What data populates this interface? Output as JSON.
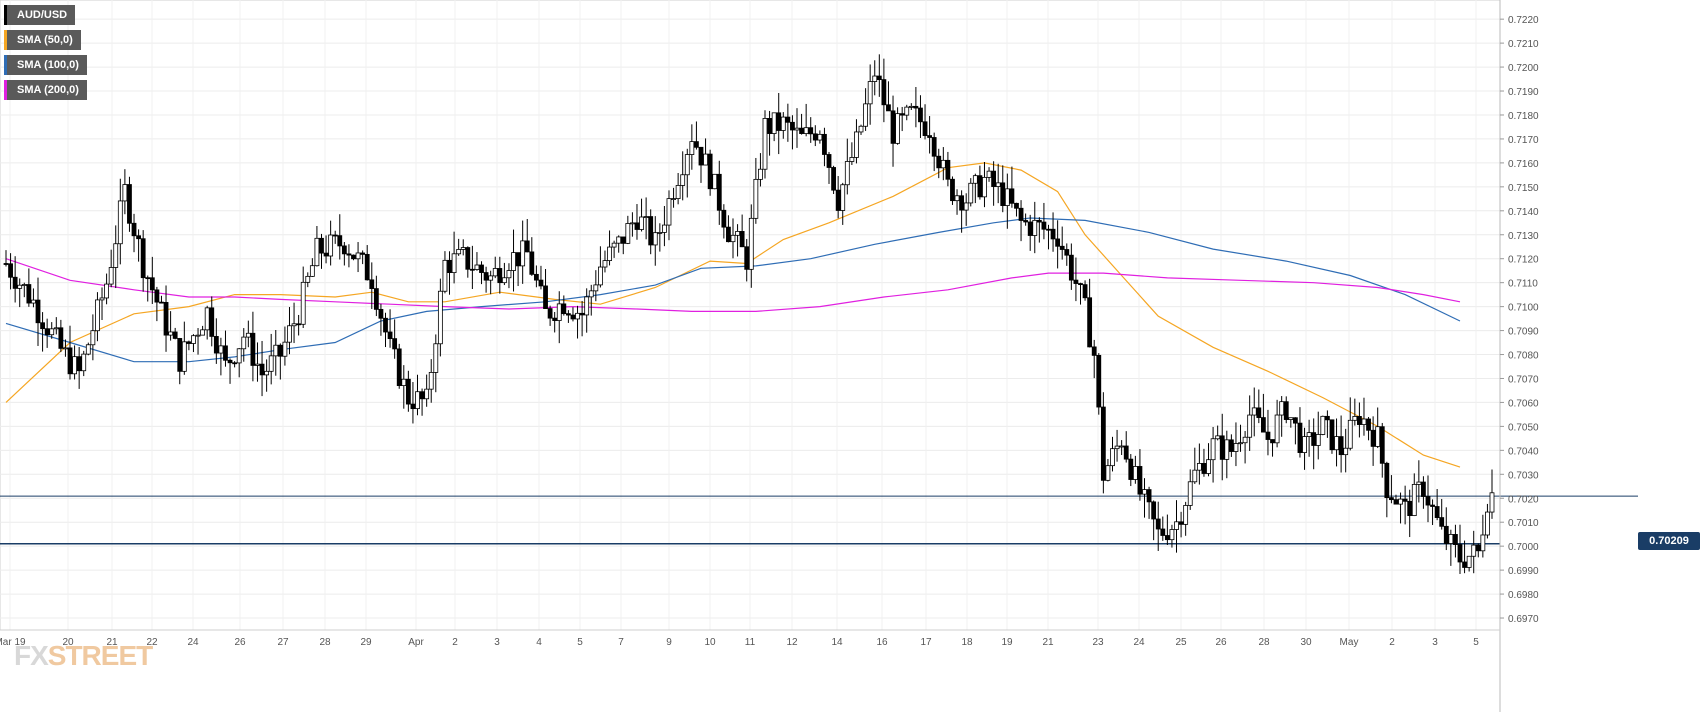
{
  "legend": [
    {
      "label": "AUD/USD",
      "color": "#000000"
    },
    {
      "label": "SMA (50,0)",
      "color": "#f5a623"
    },
    {
      "label": "SMA (100,0)",
      "color": "#2f6db5"
    },
    {
      "label": "SMA (200,0)",
      "color": "#e020e0"
    }
  ],
  "logo": {
    "fx": "FX",
    "street": "STREET"
  },
  "chart_data": {
    "type": "candlestick",
    "symbol": "AUD/USD",
    "ylim": [
      0.6965,
      0.7228
    ],
    "y_ticks": [
      "0.7220",
      "0.7210",
      "0.7200",
      "0.7190",
      "0.7180",
      "0.7170",
      "0.7160",
      "0.7150",
      "0.7140",
      "0.7130",
      "0.7120",
      "0.7110",
      "0.7100",
      "0.7090",
      "0.7080",
      "0.7070",
      "0.7060",
      "0.7050",
      "0.7040",
      "0.7030",
      "0.7020",
      "0.7010",
      "0.7000",
      "0.6990",
      "0.6980",
      "0.6970"
    ],
    "x_ticks": [
      "Mar 19",
      "20",
      "21",
      "22",
      "24",
      "26",
      "27",
      "28",
      "29",
      "Apr",
      "2",
      "3",
      "4",
      "5",
      "7",
      "9",
      "10",
      "11",
      "12",
      "14",
      "16",
      "17",
      "18",
      "19",
      "21",
      "23",
      "24",
      "25",
      "26",
      "28",
      "30",
      "May",
      "2",
      "3",
      "5"
    ],
    "grid": true,
    "current_price": {
      "label": "0.70209",
      "value": 0.70209
    },
    "horizontal_level": 0.7001,
    "ohlc_anchors": [
      [
        0,
        0.7118
      ],
      [
        6,
        0.7102
      ],
      [
        12,
        0.7082
      ],
      [
        16,
        0.7072
      ],
      [
        22,
        0.711
      ],
      [
        26,
        0.7148
      ],
      [
        30,
        0.7118
      ],
      [
        34,
        0.7097
      ],
      [
        38,
        0.7078
      ],
      [
        44,
        0.7098
      ],
      [
        48,
        0.7075
      ],
      [
        52,
        0.7088
      ],
      [
        56,
        0.7072
      ],
      [
        60,
        0.708
      ],
      [
        64,
        0.7098
      ],
      [
        68,
        0.7123
      ],
      [
        74,
        0.7127
      ],
      [
        80,
        0.7112
      ],
      [
        84,
        0.7082
      ],
      [
        88,
        0.7062
      ],
      [
        92,
        0.706
      ],
      [
        96,
        0.7118
      ],
      [
        100,
        0.712
      ],
      [
        106,
        0.7112
      ],
      [
        110,
        0.712
      ],
      [
        114,
        0.7122
      ],
      [
        118,
        0.7097
      ],
      [
        122,
        0.7102
      ],
      [
        126,
        0.7097
      ],
      [
        130,
        0.7117
      ],
      [
        134,
        0.7126
      ],
      [
        138,
        0.7138
      ],
      [
        142,
        0.7126
      ],
      [
        146,
        0.715
      ],
      [
        150,
        0.7172
      ],
      [
        154,
        0.7155
      ],
      [
        158,
        0.7132
      ],
      [
        162,
        0.712
      ],
      [
        166,
        0.7175
      ],
      [
        170,
        0.7176
      ],
      [
        174,
        0.717
      ],
      [
        178,
        0.7175
      ],
      [
        182,
        0.7145
      ],
      [
        186,
        0.7168
      ],
      [
        190,
        0.7198
      ],
      [
        194,
        0.7173
      ],
      [
        198,
        0.718
      ],
      [
        202,
        0.7175
      ],
      [
        206,
        0.715
      ],
      [
        210,
        0.7145
      ],
      [
        214,
        0.7153
      ],
      [
        218,
        0.7147
      ],
      [
        222,
        0.7135
      ],
      [
        226,
        0.7133
      ],
      [
        230,
        0.713
      ],
      [
        234,
        0.711
      ],
      [
        236,
        0.7098
      ],
      [
        238,
        0.708
      ],
      [
        240,
        0.703
      ],
      [
        244,
        0.7045
      ],
      [
        248,
        0.7022
      ],
      [
        252,
        0.7005
      ],
      [
        256,
        0.701
      ],
      [
        260,
        0.703
      ],
      [
        264,
        0.7042
      ],
      [
        268,
        0.704
      ],
      [
        272,
        0.7055
      ],
      [
        276,
        0.7045
      ],
      [
        280,
        0.7058
      ],
      [
        284,
        0.704
      ],
      [
        288,
        0.705
      ],
      [
        292,
        0.704
      ],
      [
        296,
        0.7055
      ],
      [
        300,
        0.7045
      ],
      [
        302,
        0.7025
      ],
      [
        306,
        0.7015
      ],
      [
        310,
        0.7025
      ],
      [
        314,
        0.7005
      ],
      [
        318,
        0.6995
      ],
      [
        322,
        0.6997
      ],
      [
        324,
        0.702
      ],
      [
        325,
        0.7022
      ]
    ],
    "series": [
      {
        "name": "SMA (50,0)",
        "color": "#f5a623",
        "points": [
          [
            0,
            0.706
          ],
          [
            14,
            0.7085
          ],
          [
            28,
            0.7097
          ],
          [
            40,
            0.71
          ],
          [
            50,
            0.7105
          ],
          [
            60,
            0.7105
          ],
          [
            72,
            0.7104
          ],
          [
            80,
            0.7106
          ],
          [
            88,
            0.7102
          ],
          [
            96,
            0.7102
          ],
          [
            108,
            0.7106
          ],
          [
            120,
            0.7103
          ],
          [
            130,
            0.7101
          ],
          [
            142,
            0.7108
          ],
          [
            154,
            0.7119
          ],
          [
            162,
            0.7118
          ],
          [
            170,
            0.7128
          ],
          [
            180,
            0.7135
          ],
          [
            194,
            0.7146
          ],
          [
            206,
            0.7158
          ],
          [
            214,
            0.716
          ],
          [
            222,
            0.7157
          ],
          [
            230,
            0.7148
          ],
          [
            236,
            0.713
          ],
          [
            244,
            0.7113
          ],
          [
            252,
            0.7096
          ],
          [
            264,
            0.7083
          ],
          [
            276,
            0.7073
          ],
          [
            288,
            0.7062
          ],
          [
            300,
            0.705
          ],
          [
            310,
            0.7038
          ],
          [
            318,
            0.7033
          ]
        ]
      },
      {
        "name": "SMA (100,0)",
        "color": "#2f6db5",
        "points": [
          [
            0,
            0.7093
          ],
          [
            14,
            0.7085
          ],
          [
            28,
            0.7077
          ],
          [
            40,
            0.7077
          ],
          [
            50,
            0.7079
          ],
          [
            60,
            0.7082
          ],
          [
            72,
            0.7085
          ],
          [
            82,
            0.7094
          ],
          [
            92,
            0.7098
          ],
          [
            104,
            0.71
          ],
          [
            118,
            0.7102
          ],
          [
            130,
            0.7105
          ],
          [
            142,
            0.7109
          ],
          [
            152,
            0.7116
          ],
          [
            164,
            0.7117
          ],
          [
            176,
            0.712
          ],
          [
            190,
            0.7126
          ],
          [
            204,
            0.7131
          ],
          [
            216,
            0.7135
          ],
          [
            224,
            0.7137
          ],
          [
            236,
            0.7136
          ],
          [
            250,
            0.7131
          ],
          [
            264,
            0.7124
          ],
          [
            280,
            0.7119
          ],
          [
            294,
            0.7113
          ],
          [
            306,
            0.7105
          ],
          [
            318,
            0.7094
          ]
        ]
      },
      {
        "name": "SMA (200,0)",
        "color": "#e020e0",
        "points": [
          [
            0,
            0.712
          ],
          [
            14,
            0.7111
          ],
          [
            28,
            0.7107
          ],
          [
            40,
            0.7104
          ],
          [
            50,
            0.7104
          ],
          [
            60,
            0.7103
          ],
          [
            72,
            0.7102
          ],
          [
            84,
            0.7101
          ],
          [
            96,
            0.71
          ],
          [
            110,
            0.7099
          ],
          [
            124,
            0.71
          ],
          [
            138,
            0.7099
          ],
          [
            150,
            0.7098
          ],
          [
            164,
            0.7098
          ],
          [
            178,
            0.71
          ],
          [
            192,
            0.7104
          ],
          [
            206,
            0.7107
          ],
          [
            220,
            0.7112
          ],
          [
            228,
            0.7114
          ],
          [
            240,
            0.7114
          ],
          [
            254,
            0.7112
          ],
          [
            270,
            0.7111
          ],
          [
            286,
            0.711
          ],
          [
            300,
            0.7108
          ],
          [
            310,
            0.7105
          ],
          [
            318,
            0.7102
          ]
        ]
      }
    ]
  }
}
